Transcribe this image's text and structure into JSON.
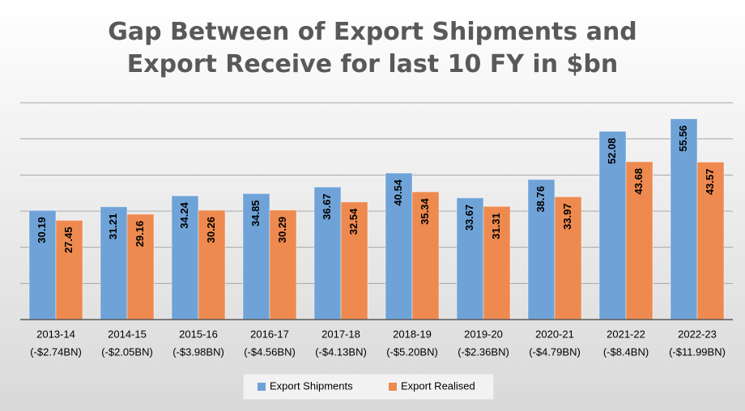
{
  "chart_data": {
    "type": "bar",
    "title": "Gap Between of Export Shipments and Export Receive for last 10 FY in $bn",
    "categories": [
      [
        "2013-14",
        "(-$2.74BN)"
      ],
      [
        "2014-15",
        "(-$2.05BN)"
      ],
      [
        "2015-16",
        "(-$3.98BN)"
      ],
      [
        "2016-17",
        "(-$4.56BN)"
      ],
      [
        "2017-18",
        "(-$4.13BN)"
      ],
      [
        "2018-19",
        "(-$5.20BN)"
      ],
      [
        "2019-20",
        "(-$2.36BN)"
      ],
      [
        "2020-21",
        "(-$4.79BN)"
      ],
      [
        "2021-22",
        "(-$8.4BN)"
      ],
      [
        "2022-23",
        "(-$11.99BN)"
      ]
    ],
    "series": [
      {
        "name": "Export Shipments",
        "color": "#6fa3d8",
        "values": [
          30.19,
          31.21,
          34.24,
          34.85,
          36.67,
          40.54,
          33.67,
          38.76,
          52.08,
          55.56
        ]
      },
      {
        "name": "Export Realised",
        "color": "#ee8a4f",
        "values": [
          27.45,
          29.16,
          30.26,
          30.29,
          32.54,
          35.34,
          31.31,
          33.97,
          43.68,
          43.57
        ]
      }
    ],
    "ylim": [
      0,
      60
    ],
    "gridlines": [
      10,
      20,
      30,
      40,
      50,
      60
    ],
    "grid": true
  }
}
